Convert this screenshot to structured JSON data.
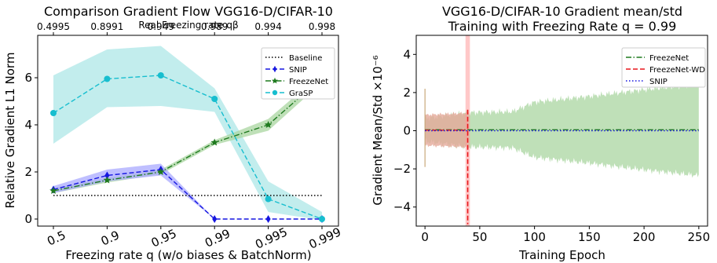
{
  "colors": {
    "baseline": "#000000",
    "snip": "#1515e0",
    "freezenet": "#1f7a1f",
    "grasp": "#17becf",
    "freezenet_wd": "#e8161b",
    "freezenet_fill": "#a9d6a0",
    "freezenet_wd_fill": "#e5a99a",
    "grasp_fill": "#b7eaea",
    "snip_fill": "#aaaaff",
    "highlight": "#ff9a9a"
  },
  "chart_data": [
    {
      "type": "line",
      "title": "Comparison Gradient Flow VGG16-D/CIFAR-10",
      "xlabel": "Freezing rate q (w/o biases & BatchNorm)",
      "ylabel": "Relative Gradient L1 Norm",
      "top_xlabel": "Real Freezing rate qβ",
      "categories": [
        "0.5",
        "0.9",
        "0.95",
        "0.99",
        "0.995",
        "0.999"
      ],
      "top_tick_labels": [
        "0.4995",
        "0.8991",
        "0.949",
        "0.989",
        "0.994",
        "0.998"
      ],
      "ylim": [
        -0.3,
        7.8
      ],
      "yticks": [
        0,
        2,
        4,
        6
      ],
      "legend_position": "upper right",
      "series": [
        {
          "name": "Baseline",
          "style": "dotted",
          "marker": "none",
          "values": [
            1,
            1,
            1,
            1,
            1,
            1
          ]
        },
        {
          "name": "SNIP",
          "style": "dashed",
          "marker": "diamond",
          "values": [
            1.25,
            1.85,
            2.1,
            0.0,
            0.0,
            0.0
          ],
          "band_low": [
            1.1,
            1.6,
            1.85,
            0.0,
            0.0,
            0.0
          ],
          "band_high": [
            1.4,
            2.1,
            2.35,
            0.0,
            0.0,
            0.0
          ]
        },
        {
          "name": "FreezeNet",
          "style": "dashdot",
          "marker": "star",
          "values": [
            1.2,
            1.65,
            2.0,
            3.25,
            4.0,
            6.0
          ],
          "band_low": [
            1.1,
            1.55,
            1.9,
            3.15,
            3.75,
            5.8
          ],
          "band_high": [
            1.3,
            1.75,
            2.1,
            3.35,
            4.25,
            6.2
          ]
        },
        {
          "name": "GraSP",
          "style": "dashed",
          "marker": "circle",
          "values": [
            4.5,
            5.95,
            6.1,
            5.1,
            0.85,
            0.0
          ],
          "band_low": [
            3.2,
            4.75,
            4.8,
            4.55,
            0.3,
            -0.05
          ],
          "band_high": [
            6.1,
            7.2,
            7.35,
            5.55,
            1.6,
            0.3
          ]
        }
      ]
    },
    {
      "type": "line",
      "title": "VGG16-D/CIFAR-10 Gradient mean/std",
      "subtitle": "Training with Freezing Rate q = 0.99",
      "xlabel": "Training Epoch",
      "ylabel": "Gradient Mean/Std",
      "yunit": "×10⁻⁶",
      "xlim": [
        -8,
        258
      ],
      "ylim": [
        -5,
        5
      ],
      "xticks": [
        0,
        50,
        100,
        150,
        200,
        250
      ],
      "yticks": [
        -4,
        -2,
        0,
        2,
        4
      ],
      "legend_position": "upper right",
      "highlight_span": [
        37,
        41
      ],
      "series": [
        {
          "name": "FreezeNet",
          "style": "dashdot",
          "mean": 0.05,
          "band_points": [
            [
              0,
              0.6
            ],
            [
              40,
              0.9
            ],
            [
              80,
              0.95
            ],
            [
              100,
              1.45
            ],
            [
              150,
              1.75
            ],
            [
              200,
              2.1
            ],
            [
              250,
              2.4
            ]
          ]
        },
        {
          "name": "FreezeNet-WD",
          "style": "dashed",
          "mean": 0.03,
          "band_points": [
            [
              0,
              0.8
            ],
            [
              38,
              0.9
            ],
            [
              40,
              0.05
            ]
          ],
          "spike_epoch": 39,
          "spike_range": [
            -4.9,
            1.1
          ]
        },
        {
          "name": "SNIP",
          "style": "dotted",
          "mean": 0.0
        }
      ]
    }
  ]
}
